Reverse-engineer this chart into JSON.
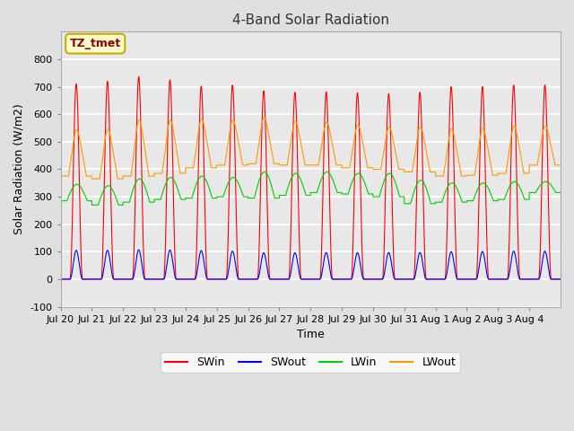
{
  "title": "4-Band Solar Radiation",
  "xlabel": "Time",
  "ylabel": "Solar Radiation (W/m2)",
  "annotation": "TZ_tmet",
  "ylim": [
    -100,
    900
  ],
  "yticks": [
    -100,
    0,
    100,
    200,
    300,
    400,
    500,
    600,
    700,
    800
  ],
  "fig_bg_color": "#e0e0e0",
  "plot_bg_color": "#e8e8e8",
  "grid_color": "#ffffff",
  "x_tick_labels": [
    "Jul 20",
    "Jul 21",
    "Jul 22",
    "Jul 23",
    "Jul 24",
    "Jul 25",
    "Jul 26",
    "Jul 27",
    "Jul 28",
    "Jul 29",
    "Jul 30",
    "Jul 31",
    "Aug 1",
    "Aug 2",
    "Aug 3",
    "Aug 4"
  ],
  "legend_entries": [
    "SWin",
    "SWout",
    "LWin",
    "LWout"
  ],
  "line_colors": {
    "SWin": "#ff0000",
    "SWout": "#0000ff",
    "LWin": "#00cc00",
    "LWout": "#ff9900"
  },
  "legend_colors": [
    "#ff0000",
    "#0000ff",
    "#00cc00",
    "#ff9900"
  ],
  "n_days": 16,
  "SWin_peak": [
    710,
    720,
    737,
    725,
    702,
    706,
    685,
    680,
    682,
    678,
    675,
    680,
    700,
    700,
    706,
    706
  ],
  "SWout_peak": [
    105,
    105,
    107,
    106,
    104,
    102,
    96,
    96,
    97,
    96,
    97,
    97,
    100,
    101,
    102,
    102
  ],
  "LWin_night": [
    285,
    270,
    280,
    290,
    295,
    300,
    295,
    305,
    315,
    310,
    300,
    275,
    280,
    285,
    290,
    315
  ],
  "LWin_day": [
    345,
    340,
    365,
    370,
    375,
    370,
    390,
    385,
    390,
    385,
    385,
    360,
    350,
    350,
    355,
    355
  ],
  "LWout_night": [
    375,
    365,
    375,
    385,
    405,
    415,
    420,
    415,
    415,
    405,
    400,
    390,
    375,
    378,
    385,
    415
  ],
  "LWout_day": [
    545,
    548,
    580,
    580,
    585,
    580,
    590,
    575,
    572,
    562,
    555,
    555,
    548,
    550,
    558,
    558
  ]
}
